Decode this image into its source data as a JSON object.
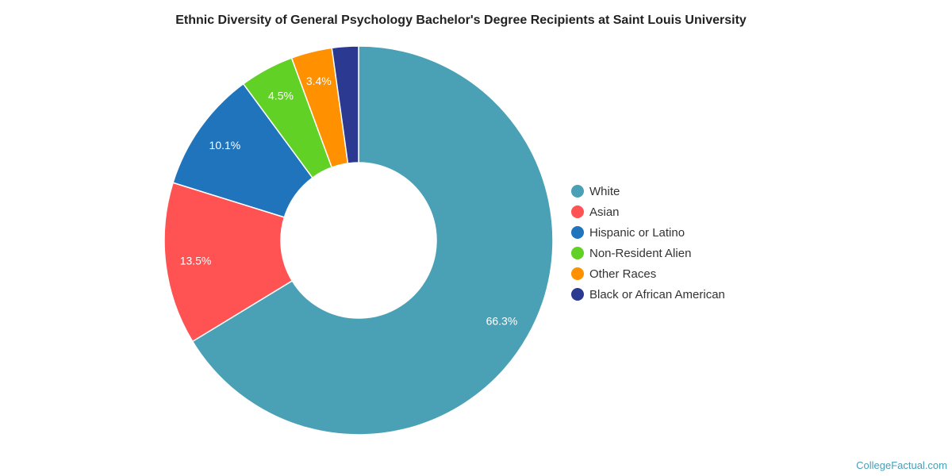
{
  "chart_data": {
    "type": "pie",
    "donut": true,
    "title": "Ethnic Diversity of General Psychology Bachelor's Degree Recipients at Saint Louis University",
    "legend_position": "right",
    "slices": [
      {
        "label": "White",
        "value": 66.3,
        "display": "66.3%",
        "color": "#4aa0b5"
      },
      {
        "label": "Asian",
        "value": 13.5,
        "display": "13.5%",
        "color": "#ff5252"
      },
      {
        "label": "Hispanic or Latino",
        "value": 10.1,
        "display": "10.1%",
        "color": "#1f74bc"
      },
      {
        "label": "Non-Resident Alien",
        "value": 4.5,
        "display": "4.5%",
        "color": "#62d125"
      },
      {
        "label": "Other Races",
        "value": 3.4,
        "display": "3.4%",
        "color": "#ff9000"
      },
      {
        "label": "Black or African American",
        "value": 2.2,
        "display": "",
        "color": "#2b3990"
      }
    ]
  },
  "credit": "CollegeFactual.com"
}
